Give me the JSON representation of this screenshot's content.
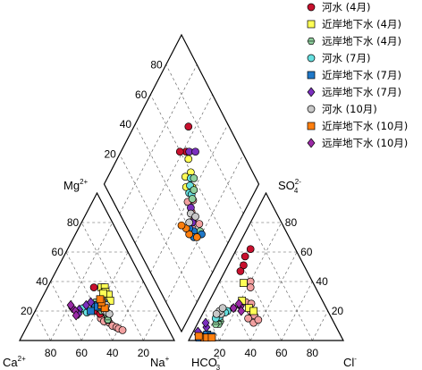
{
  "chart_data": {
    "type": "scatter",
    "diagram": "piper",
    "grid": true,
    "legend_position": "top-right",
    "ticks": [
      "20",
      "40",
      "60",
      "80"
    ],
    "axis_labels": {
      "mg": {
        "main": "Mg",
        "sup": "2+"
      },
      "ca": {
        "main": "Ca",
        "sup": "2+"
      },
      "na": {
        "main": "Na",
        "sup": "+"
      },
      "hco3": {
        "main": "HCO",
        "sub": "3",
        "sup": "-"
      },
      "so4": {
        "main": "SO",
        "sub": "4",
        "sup": "2-"
      },
      "cl": {
        "main": "Cl",
        "sup": "-"
      }
    },
    "series": [
      {
        "name": "河水 (4月)",
        "marker": "circle",
        "color": "#c8102e",
        "cation": [
          [
            0.3,
            0.36
          ],
          [
            0.35,
            0.25
          ],
          [
            0.4,
            0.2
          ],
          [
            0.43,
            0.18
          ]
        ],
        "anion": [
          [
            0.09,
            0.62
          ],
          [
            0.08,
            0.57
          ],
          [
            0.1,
            0.51
          ],
          [
            0.1,
            0.47
          ]
        ]
      },
      {
        "name": "近岸地下水 (4月)",
        "marker": "square",
        "color": "#ffff55",
        "cation": [
          [
            0.35,
            0.36
          ],
          [
            0.37,
            0.36
          ],
          [
            0.39,
            0.33
          ],
          [
            0.42,
            0.31
          ],
          [
            0.38,
            0.32
          ],
          [
            0.45,
            0.27
          ]
        ],
        "anion": [
          [
            0.28,
            0.22
          ],
          [
            0.32,
            0.2
          ],
          [
            0.21,
            0.27
          ],
          [
            0.16,
            0.39
          ]
        ]
      },
      {
        "name": "远岸地下水 (4月)",
        "marker": "hexagon",
        "color": "#8fd19e",
        "cation": [
          [
            0.4,
            0.22
          ],
          [
            0.43,
            0.2
          ],
          [
            0.46,
            0.2
          ],
          [
            0.36,
            0.26
          ],
          [
            0.5,
            0.14
          ],
          [
            0.47,
            0.18
          ]
        ],
        "anion": [
          [
            0.18,
            0.22
          ],
          [
            0.14,
            0.13
          ],
          [
            0.14,
            0.11
          ],
          [
            0.12,
            0.11
          ]
        ]
      },
      {
        "name": "河水 (7月)",
        "marker": "circle",
        "color": "#66e0e0",
        "cation": [
          [
            0.33,
            0.2
          ],
          [
            0.31,
            0.21
          ],
          [
            0.3,
            0.22
          ],
          [
            0.34,
            0.19
          ]
        ],
        "anion": [
          [
            0.15,
            0.2
          ],
          [
            0.14,
            0.19
          ],
          [
            0.12,
            0.16
          ],
          [
            0.1,
            0.15
          ]
        ]
      },
      {
        "name": "近岸地下水 (7月)",
        "marker": "square",
        "color": "#1f78c8",
        "cation": [
          [
            0.37,
            0.24
          ],
          [
            0.39,
            0.23
          ],
          [
            0.42,
            0.25
          ],
          [
            0.36,
            0.2
          ]
        ],
        "anion": [
          [
            0.08,
            0.03
          ],
          [
            0.1,
            0.04
          ],
          [
            0.13,
            0.03
          ],
          [
            0.06,
            0.02
          ]
        ]
      },
      {
        "name": "远岸地下水 (7月)",
        "marker": "diamond",
        "color": "#7b2fbe",
        "cation": [
          [
            0.28,
            0.21
          ],
          [
            0.31,
            0.24
          ],
          [
            0.33,
            0.26
          ],
          [
            0.29,
            0.18
          ]
        ],
        "anion": [
          [
            0.04,
            0.04
          ],
          [
            0.03,
            0.06
          ],
          [
            0.07,
            0.09
          ],
          [
            0.05,
            0.12
          ]
        ]
      },
      {
        "name": "河水 (10月)",
        "marker": "circle",
        "color": "#c8c8c8",
        "cation": [
          [
            0.45,
            0.2
          ],
          [
            0.47,
            0.19
          ],
          [
            0.49,
            0.18
          ],
          [
            0.44,
            0.24
          ]
        ],
        "anion": [
          [
            0.12,
            0.18
          ],
          [
            0.1,
            0.2
          ],
          [
            0.11,
            0.22
          ],
          [
            0.09,
            0.18
          ]
        ]
      },
      {
        "name": "近岸地下水 (10月)",
        "marker": "square",
        "color": "#ff7f0e",
        "cation": [
          [
            0.41,
            0.24
          ],
          [
            0.44,
            0.22
          ],
          [
            0.4,
            0.26
          ],
          [
            0.38,
            0.28
          ]
        ],
        "anion": [
          [
            0.09,
            0.02
          ],
          [
            0.11,
            0.02
          ],
          [
            0.14,
            0.02
          ],
          [
            0.05,
            0.03
          ]
        ]
      },
      {
        "name": "远岸地下水 (10月)",
        "marker": "diamond",
        "color": "#9b2aa6",
        "cation": [
          [
            0.23,
            0.22
          ],
          [
            0.26,
            0.2
          ],
          [
            0.21,
            0.24
          ],
          [
            0.28,
            0.17
          ]
        ],
        "anion": [
          [
            0.22,
            0.23
          ],
          [
            0.2,
            0.25
          ],
          [
            0.24,
            0.2
          ],
          [
            0.18,
            0.22
          ]
        ]
      }
    ],
    "extra_points": [
      {
        "panel": "cation",
        "color": "#f2a0a0",
        "pts": [
          [
            0.45,
            0.15
          ],
          [
            0.48,
            0.13
          ],
          [
            0.52,
            0.12
          ],
          [
            0.55,
            0.1
          ],
          [
            0.58,
            0.09
          ],
          [
            0.6,
            0.08
          ],
          [
            0.5,
            0.14
          ],
          [
            0.63,
            0.07
          ]
        ]
      },
      {
        "panel": "anion",
        "color": "#f2a0a0",
        "pts": [
          [
            0.24,
            0.26
          ],
          [
            0.28,
            0.25
          ],
          [
            0.3,
            0.2
          ],
          [
            0.34,
            0.17
          ],
          [
            0.31,
            0.15
          ],
          [
            0.36,
            0.12
          ],
          [
            0.38,
            0.14
          ],
          [
            0.2,
            0.4
          ],
          [
            0.22,
            0.36
          ]
        ]
      },
      {
        "panel": "diamond",
        "color": "#f2a0a0",
        "pts": [
          [
            0.28,
            0.42
          ],
          [
            0.3,
            0.45
          ],
          [
            0.34,
            0.47
          ],
          [
            0.37,
            0.52
          ],
          [
            0.4,
            0.48
          ],
          [
            0.25,
            0.48
          ]
        ]
      }
    ],
    "diamond_points": [
      {
        "color": "#c8102e",
        "pts": [
          [
            0.65,
            0.74
          ],
          [
            0.58,
            0.64
          ],
          [
            0.62,
            0.6
          ]
        ]
      },
      {
        "color": "#ffff55",
        "pts": [
          [
            0.54,
            0.63
          ],
          [
            0.48,
            0.6
          ],
          [
            0.5,
            0.55
          ],
          [
            0.46,
            0.52
          ],
          [
            0.42,
            0.56
          ]
        ]
      },
      {
        "color": "#66e0e0",
        "pts": [
          [
            0.46,
            0.58
          ],
          [
            0.44,
            0.55
          ],
          [
            0.42,
            0.52
          ],
          [
            0.4,
            0.53
          ]
        ]
      },
      {
        "color": "#8fd19e",
        "pts": [
          [
            0.44,
            0.6
          ],
          [
            0.4,
            0.56
          ],
          [
            0.38,
            0.52
          ],
          [
            0.22,
            0.46
          ]
        ]
      },
      {
        "color": "#1f78c8",
        "pts": [
          [
            0.26,
            0.42
          ],
          [
            0.24,
            0.4
          ],
          [
            0.2,
            0.46
          ],
          [
            0.3,
            0.4
          ]
        ]
      },
      {
        "color": "#ff7f0e",
        "pts": [
          [
            0.28,
            0.38
          ],
          [
            0.32,
            0.38
          ],
          [
            0.36,
            0.36
          ],
          [
            0.22,
            0.42
          ]
        ]
      },
      {
        "color": "#7b2fbe",
        "pts": [
          [
            0.56,
            0.66
          ],
          [
            0.52,
            0.7
          ],
          [
            0.36,
            0.48
          ],
          [
            0.3,
            0.44
          ]
        ]
      },
      {
        "color": "#c8c8c8",
        "pts": [
          [
            0.32,
            0.42
          ],
          [
            0.34,
            0.46
          ],
          [
            0.3,
            0.48
          ]
        ]
      }
    ]
  }
}
